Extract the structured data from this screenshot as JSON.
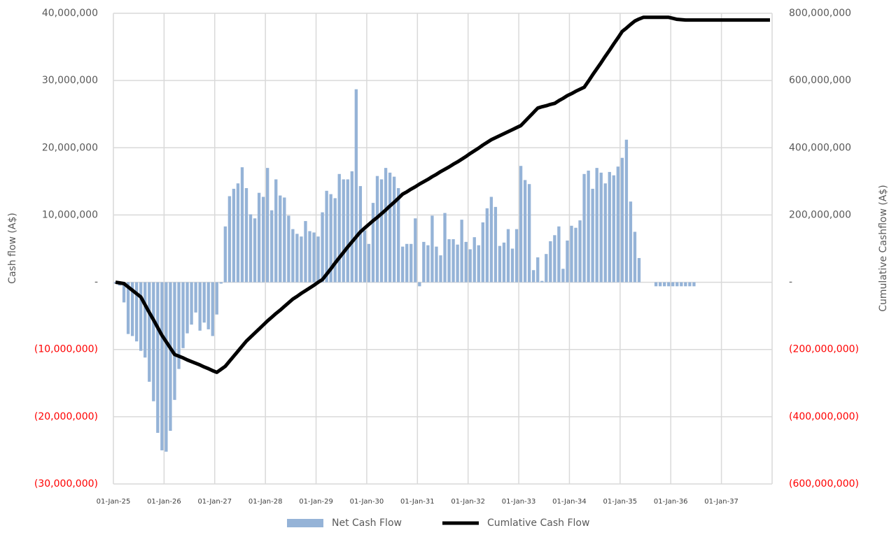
{
  "chart_data": {
    "type": "bar_line",
    "y_label": "Cash flow (A$)",
    "y2_label": "Cumulative Cashflow (A$)",
    "categories": [
      "01-Jan-25",
      null,
      null,
      null,
      null,
      null,
      null,
      null,
      null,
      null,
      null,
      null,
      "01-Jan-26",
      null,
      null,
      null,
      null,
      null,
      null,
      null,
      null,
      null,
      null,
      null,
      "01-Jan-27",
      null,
      null,
      null,
      null,
      null,
      null,
      null,
      null,
      null,
      null,
      null,
      "01-Jan-28",
      null,
      null,
      null,
      null,
      null,
      null,
      null,
      null,
      null,
      null,
      null,
      "01-Jan-29",
      null,
      null,
      null,
      null,
      null,
      null,
      null,
      null,
      null,
      null,
      null,
      "01-Jan-30",
      null,
      null,
      null,
      null,
      null,
      null,
      null,
      null,
      null,
      null,
      null,
      "01-Jan-31",
      null,
      null,
      null,
      null,
      null,
      null,
      null,
      null,
      null,
      null,
      null,
      "01-Jan-32",
      null,
      null,
      null,
      null,
      null,
      null,
      null,
      null,
      null,
      null,
      null,
      "01-Jan-33",
      null,
      null,
      null,
      null,
      null,
      null,
      null,
      null,
      null,
      null,
      null,
      "01-Jan-34",
      null,
      null,
      null,
      null,
      null,
      null,
      null,
      null,
      null,
      null,
      null,
      "01-Jan-35",
      null,
      null,
      null,
      null,
      null,
      null,
      null,
      null,
      null,
      null,
      null,
      "01-Jan-36",
      null,
      null,
      null,
      null,
      null,
      null,
      null,
      null,
      null,
      null,
      null,
      "01-Jan-37",
      null,
      null,
      null,
      null,
      null,
      null,
      null,
      null,
      null,
      null,
      null
    ],
    "series": [
      {
        "name": "Net Cash Flow",
        "type": "bar",
        "color": "#95b3d7",
        "values": [
          -200000,
          -500000,
          -3000000,
          -7700000,
          -8000000,
          -8800000,
          -10200000,
          -11200000,
          -14800000,
          -17700000,
          -22400000,
          -25000000,
          -25200000,
          -22100000,
          -17500000,
          -12900000,
          -9800000,
          -7600000,
          -6300000,
          -4500000,
          -7200000,
          -6000000,
          -7000000,
          -8000000,
          -4800000,
          -200000,
          8300000,
          12800000,
          13900000,
          14700000,
          17100000,
          14000000,
          10100000,
          9500000,
          13300000,
          12700000,
          17000000,
          10700000,
          15300000,
          12900000,
          12600000,
          9900000,
          7900000,
          7200000,
          6800000,
          9100000,
          7600000,
          7400000,
          6800000,
          10400000,
          13600000,
          13100000,
          12500000,
          16100000,
          15300000,
          15300000,
          16500000,
          28700000,
          14300000,
          7700000,
          5700000,
          11800000,
          15800000,
          15300000,
          17000000,
          16300000,
          15700000,
          14000000,
          5300000,
          5700000,
          5700000,
          9500000,
          -600000,
          6000000,
          5500000,
          9900000,
          5300000,
          4000000,
          10300000,
          6400000,
          6400000,
          5600000,
          9300000,
          6000000,
          4900000,
          6700000,
          5500000,
          8900000,
          11000000,
          12700000,
          11200000,
          5400000,
          5900000,
          7900000,
          5000000,
          7900000,
          17300000,
          15200000,
          14600000,
          1800000,
          3700000,
          200000,
          4200000,
          6100000,
          7000000,
          8300000,
          2000000,
          6200000,
          8400000,
          8100000,
          9200000,
          16100000,
          16600000,
          13900000,
          17000000,
          16300000,
          14700000,
          16400000,
          15900000,
          17200000,
          18500000,
          21200000,
          12000000,
          7500000,
          3600000,
          0,
          0,
          0,
          -600000,
          -600000,
          -600000,
          -600000,
          -600000,
          -600000,
          -600000,
          -600000,
          -600000,
          -600000,
          0,
          0,
          0,
          0,
          0,
          0,
          0,
          0,
          0,
          0,
          0,
          0,
          0,
          0,
          0,
          0,
          0,
          0
        ]
      },
      {
        "name": "Cumlative Cash Flow",
        "type": "line",
        "axis": "y2",
        "color": "#000000",
        "values": [
          0,
          -2000000,
          -4000000,
          -14000000,
          -24000000,
          -34000000,
          -44000000,
          -67000000,
          -90000000,
          -112000000,
          -135000000,
          -158000000,
          -177000000,
          -196000000,
          -215000000,
          -220000000,
          -225000000,
          -231000000,
          -236000000,
          -241000000,
          -246000000,
          -252000000,
          -257000000,
          -263000000,
          -268000000,
          -259000000,
          -250000000,
          -235000000,
          -220000000,
          -205000000,
          -190000000,
          -175000000,
          -163000000,
          -151000000,
          -139000000,
          -127000000,
          -115000000,
          -104000000,
          -93000000,
          -83000000,
          -72000000,
          -61000000,
          -50000000,
          -42000000,
          -33000000,
          -25000000,
          -17000000,
          -9000000,
          0,
          8000000,
          24000000,
          40000000,
          57000000,
          73000000,
          89000000,
          105000000,
          120000000,
          135000000,
          150000000,
          161000000,
          172000000,
          183000000,
          193000000,
          204000000,
          215000000,
          227000000,
          238000000,
          250000000,
          262000000,
          269000000,
          277000000,
          284000000,
          292000000,
          299000000,
          306000000,
          314000000,
          321000000,
          329000000,
          336000000,
          343000000,
          351000000,
          358000000,
          366000000,
          374000000,
          383000000,
          391000000,
          399000000,
          408000000,
          416000000,
          424000000,
          430000000,
          436000000,
          442000000,
          448000000,
          454000000,
          460000000,
          466000000,
          479000000,
          492000000,
          505000000,
          518000000,
          522000000,
          525000000,
          529000000,
          532000000,
          540000000,
          547000000,
          555000000,
          561000000,
          568000000,
          574000000,
          580000000,
          598000000,
          617000000,
          635000000,
          653000000,
          672000000,
          690000000,
          709000000,
          727000000,
          746000000,
          756000000,
          767000000,
          777000000,
          783000000,
          788000000,
          788000000,
          788000000,
          788000000,
          788000000,
          788000000,
          788000000,
          785000000,
          782000000,
          781000000,
          780000000,
          780000000,
          780000000,
          780000000,
          780000000,
          780000000,
          780000000,
          780000000,
          780000000,
          780000000,
          780000000,
          780000000,
          780000000,
          780000000,
          780000000,
          780000000,
          780000000,
          780000000,
          780000000,
          780000000,
          780000000
        ]
      }
    ],
    "ylim": [
      -30000000,
      40000000
    ],
    "yticks": [
      {
        "value": -30000000,
        "label": "(30,000,000)"
      },
      {
        "value": -20000000,
        "label": "(20,000,000)"
      },
      {
        "value": -10000000,
        "label": "(10,000,000)"
      },
      {
        "value": 0,
        "label": "-"
      },
      {
        "value": 10000000,
        "label": "10,000,000"
      },
      {
        "value": 20000000,
        "label": "20,000,000"
      },
      {
        "value": 30000000,
        "label": "30,000,000"
      },
      {
        "value": 40000000,
        "label": "40,000,000"
      }
    ],
    "y2lim": [
      -600000000,
      800000000
    ],
    "y2ticks": [
      {
        "value": -600000000,
        "label": "(600,000,000)"
      },
      {
        "value": -400000000,
        "label": "(400,000,000)"
      },
      {
        "value": -200000000,
        "label": "(200,000,000)"
      },
      {
        "value": 0,
        "label": "-"
      },
      {
        "value": 200000000,
        "label": "200,000,000"
      },
      {
        "value": 400000000,
        "label": "400,000,000"
      },
      {
        "value": 600000000,
        "label": "600,000,000"
      },
      {
        "value": 800000000,
        "label": "800,000,000"
      }
    ],
    "negative_label_color": "#ff0000",
    "grid": true,
    "legend": "bottom"
  }
}
